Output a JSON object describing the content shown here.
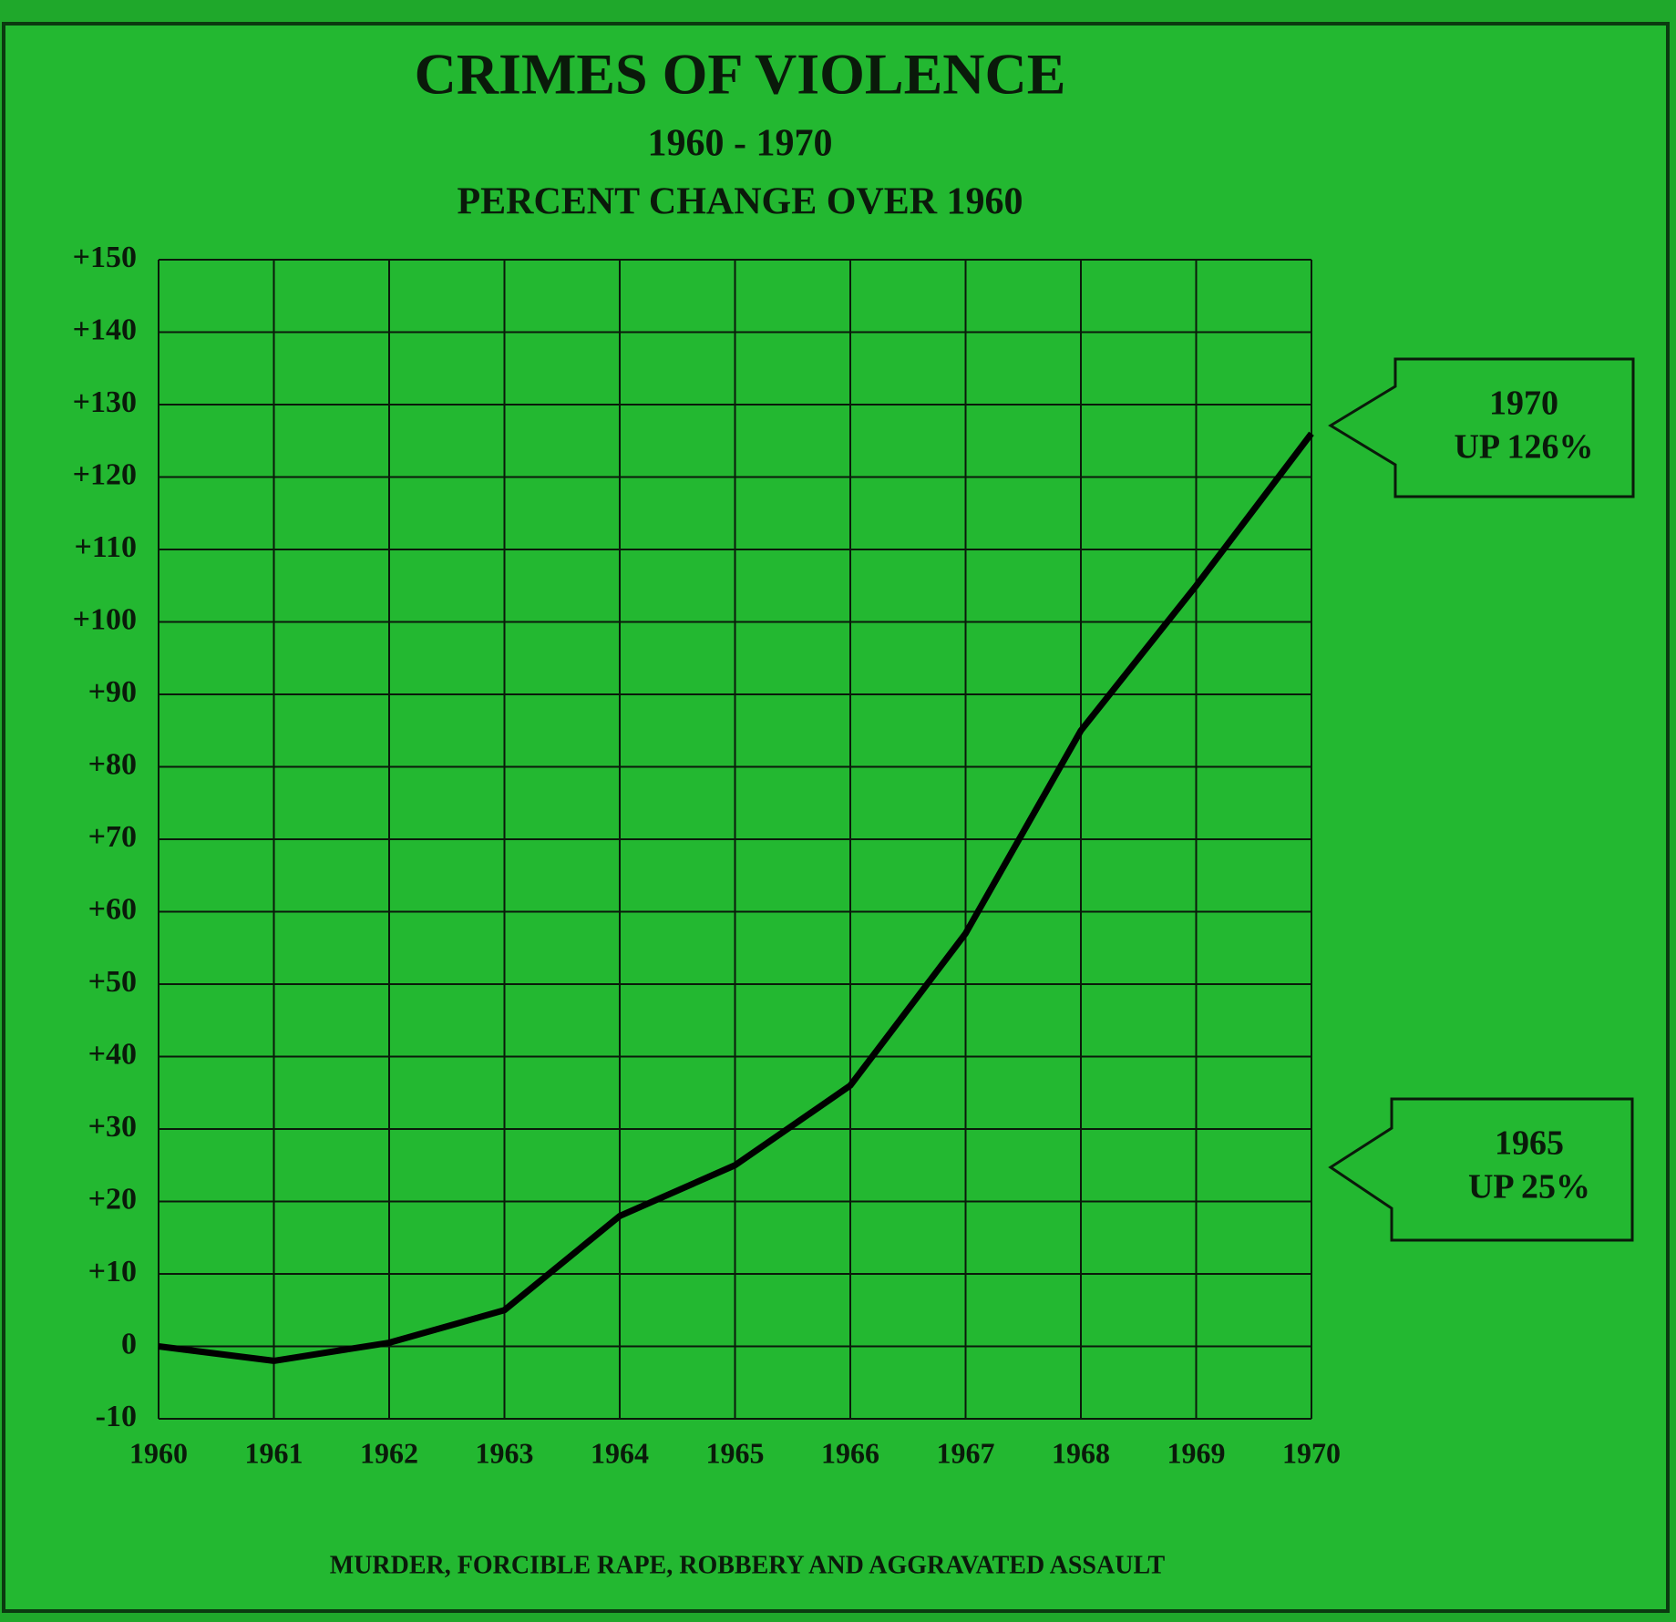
{
  "chart_data": {
    "type": "line",
    "title": "CRIMES OF VIOLENCE",
    "subtitle": [
      "1960 - 1970",
      "PERCENT CHANGE OVER 1960"
    ],
    "footnote": "MURDER, FORCIBLE RAPE, ROBBERY AND AGGRAVATED ASSAULT",
    "x": [
      1960,
      1961,
      1962,
      1963,
      1964,
      1965,
      1966,
      1967,
      1968,
      1969,
      1970
    ],
    "values": [
      0,
      -2,
      0.5,
      5,
      18,
      25,
      36,
      57,
      85,
      105,
      126
    ],
    "color": "#000000",
    "xlim": [
      1960,
      1970
    ],
    "xticks": [
      1960,
      1961,
      1962,
      1963,
      1964,
      1965,
      1966,
      1967,
      1968,
      1969,
      1970
    ],
    "ylim": [
      -10,
      150
    ],
    "yticks": [
      -10,
      0,
      {
        "value": 10,
        "label": "+10"
      },
      {
        "value": 20,
        "label": "+20"
      },
      {
        "value": 30,
        "label": "+30"
      },
      {
        "value": 40,
        "label": "+40"
      },
      {
        "value": 50,
        "label": "+50"
      },
      {
        "value": 60,
        "label": "+60"
      },
      {
        "value": 70,
        "label": "+70"
      },
      {
        "value": 80,
        "label": "+80"
      },
      {
        "value": 90,
        "label": "+90"
      },
      {
        "value": 100,
        "label": "+100"
      },
      {
        "value": 110,
        "label": "+110"
      },
      {
        "value": 120,
        "label": "+120"
      },
      {
        "value": 130,
        "label": "+130"
      },
      {
        "value": 140,
        "label": "+140"
      },
      {
        "value": 150,
        "label": "+150"
      }
    ],
    "grid": true,
    "annotations": [
      {
        "lines": [
          "1970",
          "UP 126%"
        ]
      },
      {
        "lines": [
          "1965",
          "UP 25%"
        ]
      }
    ]
  }
}
